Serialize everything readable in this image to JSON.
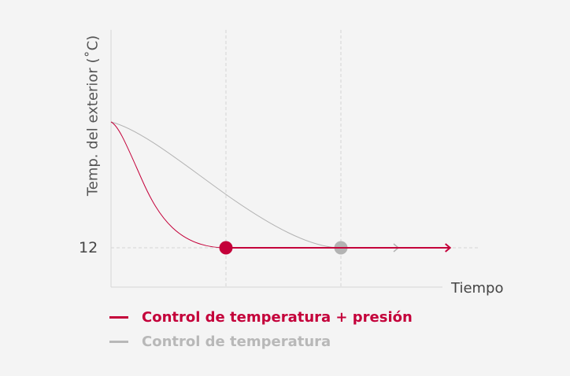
{
  "chart_data": {
    "type": "line",
    "title": "",
    "xlabel": "Tiempo",
    "ylabel": "Temp. del exterior (˚C)",
    "y_ticks": [
      "12"
    ],
    "target_value": 12,
    "start_value": 20,
    "grid": "dashed guides at target value and settle times",
    "legend_placement": "bottom-left",
    "series": [
      {
        "name": "Control de temperatura + presión",
        "color": "#c4003a",
        "start_time": 0,
        "settle_time": 1,
        "arrow_end_time": 2.95
      },
      {
        "name": "Control de temperatura",
        "color": "#b3b3b3",
        "start_time": 0,
        "settle_time": 2,
        "arrow_end_time": 2.5
      }
    ]
  }
}
